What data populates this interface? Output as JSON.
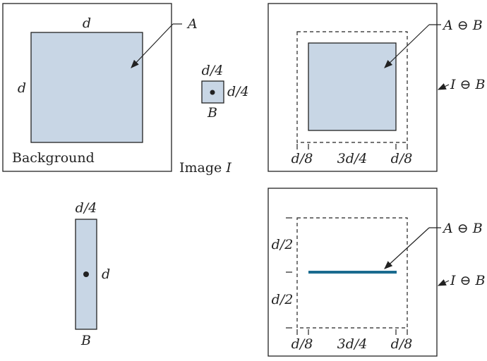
{
  "colors": {
    "fill": "#c8d6e5",
    "line": "#1a6b8f",
    "ink": "#222222"
  },
  "panel1": {
    "top_d": "d",
    "left_d": "d",
    "pointer_A": "A",
    "background": "Background"
  },
  "elem_small": {
    "top": "d/4",
    "right": "d/4",
    "name": "B"
  },
  "image_label": {
    "word": "Image",
    "var": "I"
  },
  "panel2": {
    "pointer": "A ⊖ B",
    "outer": "I ⊖ B",
    "dim_left": "d/8",
    "dim_mid": "3d/4",
    "dim_right": "d/8"
  },
  "elem_tall": {
    "top": "d/4",
    "right": "d",
    "name": "B"
  },
  "panel4": {
    "pointer": "A ⊖ B",
    "outer": "I ⊖ B",
    "half_top": "d/2",
    "half_bottom": "d/2",
    "dim_left": "d/8",
    "dim_mid": "3d/4",
    "dim_right": "d/8"
  }
}
